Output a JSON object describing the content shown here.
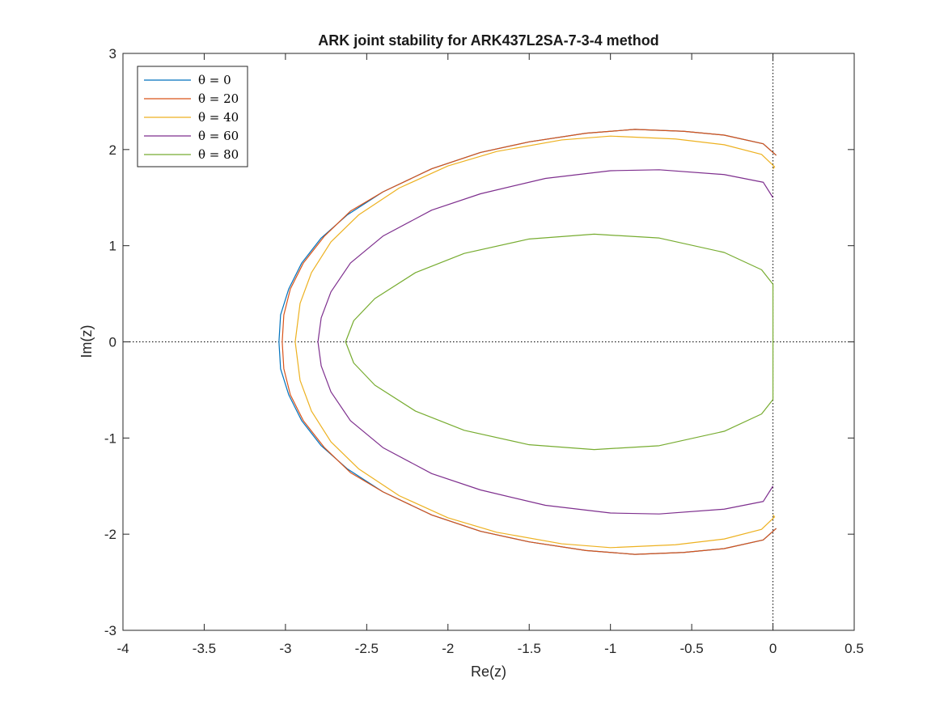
{
  "chart_data": {
    "type": "line",
    "title": "ARK joint stability for ARK437L2SA-7-3-4 method",
    "xlabel": "Re(z)",
    "ylabel": "Im(z)",
    "xlim": [
      -4,
      0.5
    ],
    "ylim": [
      -3,
      3
    ],
    "xticks": [
      "-4",
      "-3.5",
      "-3",
      "-2.5",
      "-2",
      "-1.5",
      "-1",
      "-0.5",
      "0",
      "0.5"
    ],
    "yticks": [
      "3",
      "2",
      "1",
      "0",
      "-1",
      "-2",
      "-3"
    ],
    "grid": false,
    "legend_location": "top-left",
    "reference_lines": [
      {
        "orientation": "horizontal",
        "value": 0,
        "style": "dotted"
      },
      {
        "orientation": "vertical",
        "value": 0,
        "style": "dotted"
      }
    ],
    "series": [
      {
        "name": "θ = 0",
        "color": "#0072BD",
        "points": [
          [
            0.02,
            1.94
          ],
          [
            -0.06,
            2.06
          ],
          [
            -0.3,
            2.15
          ],
          [
            -0.55,
            2.19
          ],
          [
            -0.85,
            2.21
          ],
          [
            -1.15,
            2.17
          ],
          [
            -1.5,
            2.08
          ],
          [
            -1.8,
            1.97
          ],
          [
            -2.1,
            1.8
          ],
          [
            -2.4,
            1.56
          ],
          [
            -2.62,
            1.32
          ],
          [
            -2.78,
            1.08
          ],
          [
            -2.9,
            0.82
          ],
          [
            -2.98,
            0.55
          ],
          [
            -3.03,
            0.28
          ],
          [
            -3.04,
            0.0
          ],
          [
            -3.03,
            -0.28
          ],
          [
            -2.98,
            -0.55
          ],
          [
            -2.9,
            -0.82
          ],
          [
            -2.78,
            -1.08
          ],
          [
            -2.62,
            -1.32
          ],
          [
            -2.4,
            -1.56
          ],
          [
            -2.1,
            -1.8
          ],
          [
            -1.8,
            -1.97
          ],
          [
            -1.5,
            -2.08
          ],
          [
            -1.15,
            -2.17
          ],
          [
            -0.85,
            -2.21
          ],
          [
            -0.55,
            -2.19
          ],
          [
            -0.3,
            -2.15
          ],
          [
            -0.06,
            -2.06
          ],
          [
            0.02,
            -1.94
          ]
        ]
      },
      {
        "name": "θ = 20",
        "color": "#D95319",
        "points": [
          [
            0.02,
            1.94
          ],
          [
            -0.06,
            2.06
          ],
          [
            -0.3,
            2.15
          ],
          [
            -0.55,
            2.19
          ],
          [
            -0.85,
            2.21
          ],
          [
            -1.15,
            2.17
          ],
          [
            -1.5,
            2.08
          ],
          [
            -1.8,
            1.97
          ],
          [
            -2.1,
            1.8
          ],
          [
            -2.4,
            1.56
          ],
          [
            -2.6,
            1.36
          ],
          [
            -2.76,
            1.1
          ],
          [
            -2.89,
            0.82
          ],
          [
            -2.97,
            0.55
          ],
          [
            -3.01,
            0.28
          ],
          [
            -3.02,
            0.0
          ],
          [
            -3.01,
            -0.28
          ],
          [
            -2.97,
            -0.55
          ],
          [
            -2.89,
            -0.82
          ],
          [
            -2.76,
            -1.1
          ],
          [
            -2.6,
            -1.36
          ],
          [
            -2.4,
            -1.56
          ],
          [
            -2.1,
            -1.8
          ],
          [
            -1.8,
            -1.97
          ],
          [
            -1.5,
            -2.08
          ],
          [
            -1.15,
            -2.17
          ],
          [
            -0.85,
            -2.21
          ],
          [
            -0.55,
            -2.19
          ],
          [
            -0.3,
            -2.15
          ],
          [
            -0.06,
            -2.06
          ],
          [
            0.02,
            -1.94
          ]
        ]
      },
      {
        "name": "θ = 40",
        "color": "#EDB120",
        "points": [
          [
            0.0,
            1.8
          ],
          [
            0.01,
            1.82
          ],
          [
            -0.07,
            1.95
          ],
          [
            -0.3,
            2.05
          ],
          [
            -0.6,
            2.11
          ],
          [
            -1.0,
            2.14
          ],
          [
            -1.3,
            2.1
          ],
          [
            -1.7,
            1.98
          ],
          [
            -2.0,
            1.83
          ],
          [
            -2.3,
            1.6
          ],
          [
            -2.55,
            1.32
          ],
          [
            -2.72,
            1.04
          ],
          [
            -2.84,
            0.72
          ],
          [
            -2.91,
            0.4
          ],
          [
            -2.94,
            0.0
          ],
          [
            -2.91,
            -0.4
          ],
          [
            -2.84,
            -0.72
          ],
          [
            -2.72,
            -1.04
          ],
          [
            -2.55,
            -1.32
          ],
          [
            -2.3,
            -1.6
          ],
          [
            -2.0,
            -1.83
          ],
          [
            -1.7,
            -1.98
          ],
          [
            -1.3,
            -2.1
          ],
          [
            -1.0,
            -2.14
          ],
          [
            -0.6,
            -2.11
          ],
          [
            -0.3,
            -2.05
          ],
          [
            -0.07,
            -1.95
          ],
          [
            0.01,
            -1.82
          ],
          [
            0.0,
            -1.8
          ]
        ]
      },
      {
        "name": "θ = 60",
        "color": "#7E2F8E",
        "points": [
          [
            0.0,
            1.5
          ],
          [
            -0.06,
            1.66
          ],
          [
            -0.3,
            1.74
          ],
          [
            -0.7,
            1.79
          ],
          [
            -1.0,
            1.78
          ],
          [
            -1.4,
            1.7
          ],
          [
            -1.8,
            1.54
          ],
          [
            -2.1,
            1.37
          ],
          [
            -2.4,
            1.1
          ],
          [
            -2.6,
            0.82
          ],
          [
            -2.72,
            0.52
          ],
          [
            -2.78,
            0.25
          ],
          [
            -2.8,
            0.0
          ],
          [
            -2.78,
            -0.25
          ],
          [
            -2.72,
            -0.52
          ],
          [
            -2.6,
            -0.82
          ],
          [
            -2.4,
            -1.1
          ],
          [
            -2.1,
            -1.37
          ],
          [
            -1.8,
            -1.54
          ],
          [
            -1.4,
            -1.7
          ],
          [
            -1.0,
            -1.78
          ],
          [
            -0.7,
            -1.79
          ],
          [
            -0.3,
            -1.74
          ],
          [
            -0.06,
            -1.66
          ],
          [
            0.0,
            -1.5
          ]
        ]
      },
      {
        "name": "θ = 80",
        "color": "#77AC30",
        "points": [
          [
            0.0,
            0.6
          ],
          [
            -0.07,
            0.75
          ],
          [
            -0.3,
            0.93
          ],
          [
            -0.7,
            1.08
          ],
          [
            -1.1,
            1.12
          ],
          [
            -1.5,
            1.07
          ],
          [
            -1.9,
            0.92
          ],
          [
            -2.2,
            0.72
          ],
          [
            -2.45,
            0.45
          ],
          [
            -2.58,
            0.22
          ],
          [
            -2.63,
            0.0
          ],
          [
            -2.58,
            -0.22
          ],
          [
            -2.45,
            -0.45
          ],
          [
            -2.2,
            -0.72
          ],
          [
            -1.9,
            -0.92
          ],
          [
            -1.5,
            -1.07
          ],
          [
            -1.1,
            -1.12
          ],
          [
            -0.7,
            -1.08
          ],
          [
            -0.3,
            -0.93
          ],
          [
            -0.07,
            -0.75
          ],
          [
            0.0,
            -0.6
          ],
          [
            0.0,
            0.6
          ]
        ]
      }
    ]
  }
}
